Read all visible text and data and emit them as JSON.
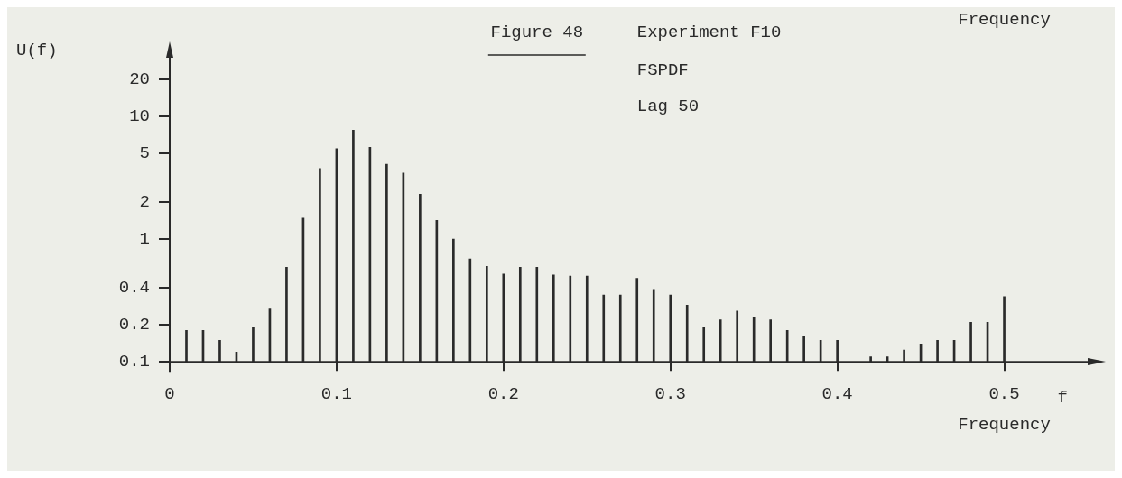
{
  "chart_data": {
    "type": "bar",
    "title": "Figure 48",
    "xlabel": "Frequency",
    "ylabel": "U(f)",
    "annotations": [
      "Experiment F10",
      "FSPDF",
      "Lag 50",
      "f",
      "Frequency"
    ],
    "x": [
      0.01,
      0.02,
      0.03,
      0.04,
      0.05,
      0.06,
      0.07,
      0.08,
      0.09,
      0.1,
      0.11,
      0.12,
      0.13,
      0.14,
      0.15,
      0.16,
      0.17,
      0.18,
      0.19,
      0.2,
      0.21,
      0.22,
      0.23,
      0.24,
      0.25,
      0.26,
      0.27,
      0.28,
      0.29,
      0.3,
      0.31,
      0.32,
      0.33,
      0.34,
      0.35,
      0.36,
      0.37,
      0.38,
      0.39,
      0.4,
      0.41,
      0.42,
      0.43,
      0.44,
      0.45,
      0.46,
      0.47,
      0.48,
      0.49,
      0.5
    ],
    "values": [
      0.18,
      0.18,
      0.15,
      0.12,
      0.19,
      0.27,
      0.59,
      1.48,
      3.75,
      5.45,
      7.7,
      5.6,
      4.07,
      3.45,
      2.32,
      1.42,
      1.0,
      0.69,
      0.6,
      0.52,
      0.59,
      0.59,
      0.51,
      0.5,
      0.5,
      0.35,
      0.35,
      0.48,
      0.39,
      0.35,
      0.29,
      0.19,
      0.22,
      0.26,
      0.23,
      0.22,
      0.18,
      0.16,
      0.15,
      0.15,
      null,
      0.11,
      0.11,
      0.125,
      0.14,
      0.15,
      0.15,
      0.21,
      0.21,
      0.34
    ],
    "color": "#2a2a2a",
    "log": "y",
    "grid": false,
    "xlim": [
      0,
      0.55
    ],
    "xticks": [
      0,
      0.1,
      0.2,
      0.3,
      0.4,
      0.5
    ],
    "ylim": [
      0.1,
      30
    ],
    "yticks": [
      0.1,
      0.2,
      0.4,
      1,
      2,
      5,
      10,
      20
    ]
  }
}
